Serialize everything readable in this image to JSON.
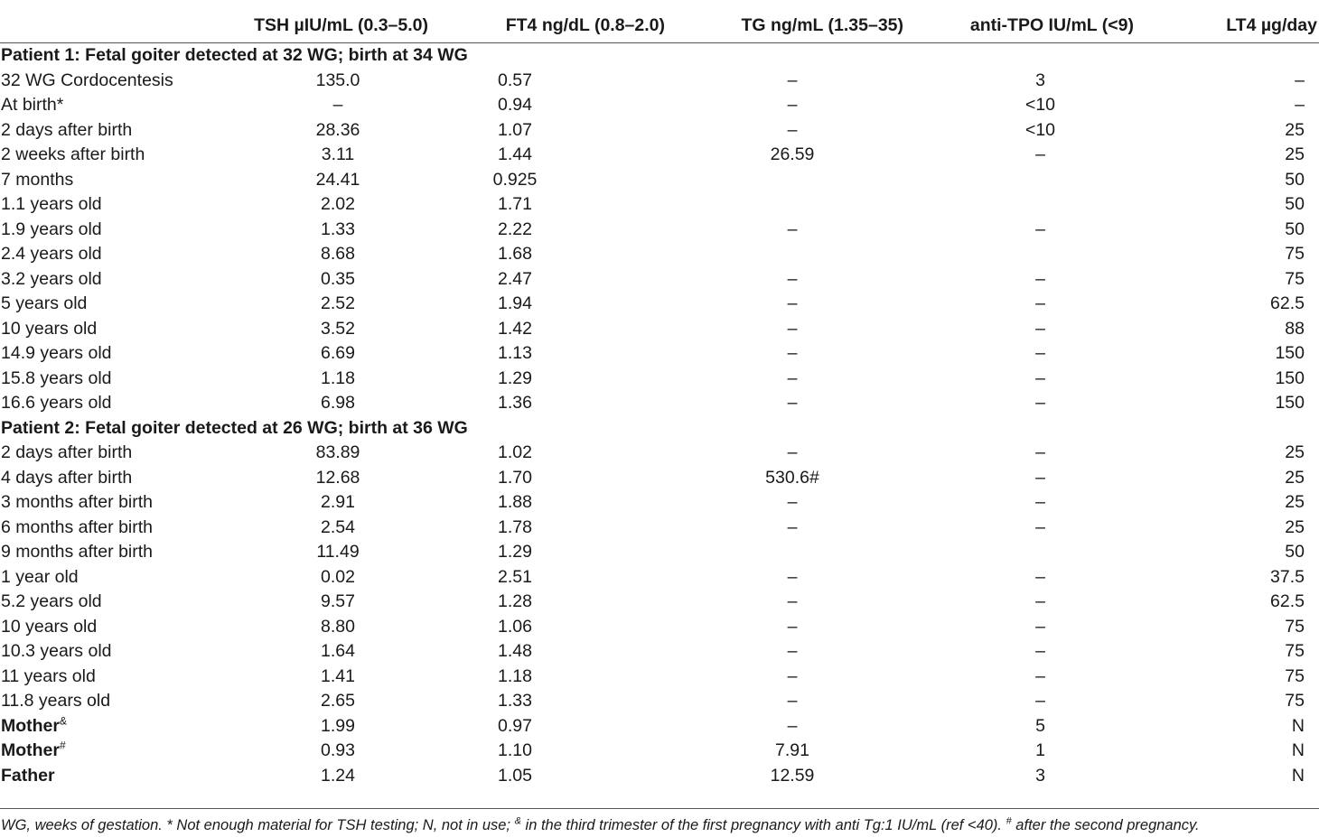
{
  "headers": {
    "label": "",
    "tsh": "TSH µIU/mL (0.3–5.0)",
    "ft4": "FT4 ng/dL (0.8–2.0)",
    "tg": "TG ng/mL (1.35–35)",
    "tpo": "anti-TPO IU/mL (<9)",
    "lt4": "LT4 µg/day"
  },
  "patient1": {
    "title": "Patient 1: Fetal goiter detected at 32 WG; birth at 34 WG",
    "rows": [
      {
        "label": "32 WG Cordocentesis",
        "tsh": "135.0",
        "ft4": "0.57",
        "tg": "–",
        "tpo": "3",
        "lt4": "–"
      },
      {
        "label": "At birth*",
        "tsh": "–",
        "ft4": "0.94",
        "tg": "–",
        "tpo": "<10",
        "lt4": "–"
      },
      {
        "label": "2 days after birth",
        "tsh": "28.36",
        "ft4": "1.07",
        "tg": "–",
        "tpo": "<10",
        "lt4": "25"
      },
      {
        "label": "2 weeks after birth",
        "tsh": "3.11",
        "ft4": "1.44",
        "tg": "26.59",
        "tpo": "–",
        "lt4": "25"
      },
      {
        "label": "7 months",
        "tsh": "24.41",
        "ft4": "0.925",
        "tg": "",
        "tpo": "",
        "lt4": "50"
      },
      {
        "label": "1.1 years old",
        "tsh": "2.02",
        "ft4": "1.71",
        "tg": "",
        "tpo": "",
        "lt4": "50"
      },
      {
        "label": "1.9 years old",
        "tsh": "1.33",
        "ft4": "2.22",
        "tg": "–",
        "tpo": "–",
        "lt4": "50"
      },
      {
        "label": "2.4 years old",
        "tsh": "8.68",
        "ft4": "1.68",
        "tg": "",
        "tpo": "",
        "lt4": "75"
      },
      {
        "label": "3.2 years old",
        "tsh": "0.35",
        "ft4": "2.47",
        "tg": "–",
        "tpo": "–",
        "lt4": "75"
      },
      {
        "label": "5 years old",
        "tsh": "2.52",
        "ft4": "1.94",
        "tg": "–",
        "tpo": "–",
        "lt4": "62.5"
      },
      {
        "label": "10 years old",
        "tsh": "3.52",
        "ft4": "1.42",
        "tg": "–",
        "tpo": "–",
        "lt4": "88"
      },
      {
        "label": "14.9 years old",
        "tsh": "6.69",
        "ft4": "1.13",
        "tg": "–",
        "tpo": "–",
        "lt4": "150"
      },
      {
        "label": "15.8 years old",
        "tsh": "1.18",
        "ft4": "1.29",
        "tg": "–",
        "tpo": "–",
        "lt4": "150"
      },
      {
        "label": "16.6 years old",
        "tsh": "6.98",
        "ft4": "1.36",
        "tg": "–",
        "tpo": "–",
        "lt4": "150"
      }
    ]
  },
  "patient2": {
    "title": "Patient 2: Fetal goiter detected at 26 WG; birth at 36 WG",
    "rows": [
      {
        "label": "2 days after birth",
        "tsh": "83.89",
        "ft4": "1.02",
        "tg": "–",
        "tpo": "–",
        "lt4": "25"
      },
      {
        "label": "4 days after birth",
        "tsh": "12.68",
        "ft4": "1.70",
        "tg": "530.6#",
        "tpo": "–",
        "lt4": "25"
      },
      {
        "label": "3 months after birth",
        "tsh": "2.91",
        "ft4": "1.88",
        "tg": "–",
        "tpo": "–",
        "lt4": "25"
      },
      {
        "label": "6 months after birth",
        "tsh": "2.54",
        "ft4": "1.78",
        "tg": "–",
        "tpo": "–",
        "lt4": "25"
      },
      {
        "label": "9 months after birth",
        "tsh": "11.49",
        "ft4": "1.29",
        "tg": "",
        "tpo": "",
        "lt4": "50"
      },
      {
        "label": "1 year old",
        "tsh": "0.02",
        "ft4": "2.51",
        "tg": "–",
        "tpo": "–",
        "lt4": "37.5"
      },
      {
        "label": "5.2 years old",
        "tsh": "9.57",
        "ft4": "1.28",
        "tg": "–",
        "tpo": "–",
        "lt4": "62.5"
      },
      {
        "label": "10 years old",
        "tsh": "8.80",
        "ft4": "1.06",
        "tg": "–",
        "tpo": "–",
        "lt4": "75"
      },
      {
        "label": "10.3 years old",
        "tsh": "1.64",
        "ft4": "1.48",
        "tg": "–",
        "tpo": "–",
        "lt4": "75"
      },
      {
        "label": "11 years old",
        "tsh": "1.41",
        "ft4": "1.18",
        "tg": "–",
        "tpo": "–",
        "lt4": "75"
      },
      {
        "label": "11.8 years old",
        "tsh": "2.65",
        "ft4": "1.33",
        "tg": "–",
        "tpo": "–",
        "lt4": "75"
      }
    ]
  },
  "family": [
    {
      "label": "Mother",
      "sup": "&",
      "tsh": "1.99",
      "ft4": "0.97",
      "tg": "–",
      "tpo": "5",
      "lt4": "N"
    },
    {
      "label": "Mother",
      "sup": "#",
      "tsh": "0.93",
      "ft4": "1.10",
      "tg": "7.91",
      "tpo": "1",
      "lt4": "N"
    },
    {
      "label": "Father",
      "sup": "",
      "tsh": "1.24",
      "ft4": "1.05",
      "tg": "12.59",
      "tpo": "3",
      "lt4": "N"
    }
  ],
  "footnote": {
    "part1": "WG, weeks of gestation. * Not enough material for TSH testing; N, not in use; ",
    "sup1": "&",
    "part2": " in the third trimester of the first pregnancy with anti Tg:1 IU/mL (ref <40). ",
    "sup2": "#",
    "part3": " after the second pregnancy."
  }
}
